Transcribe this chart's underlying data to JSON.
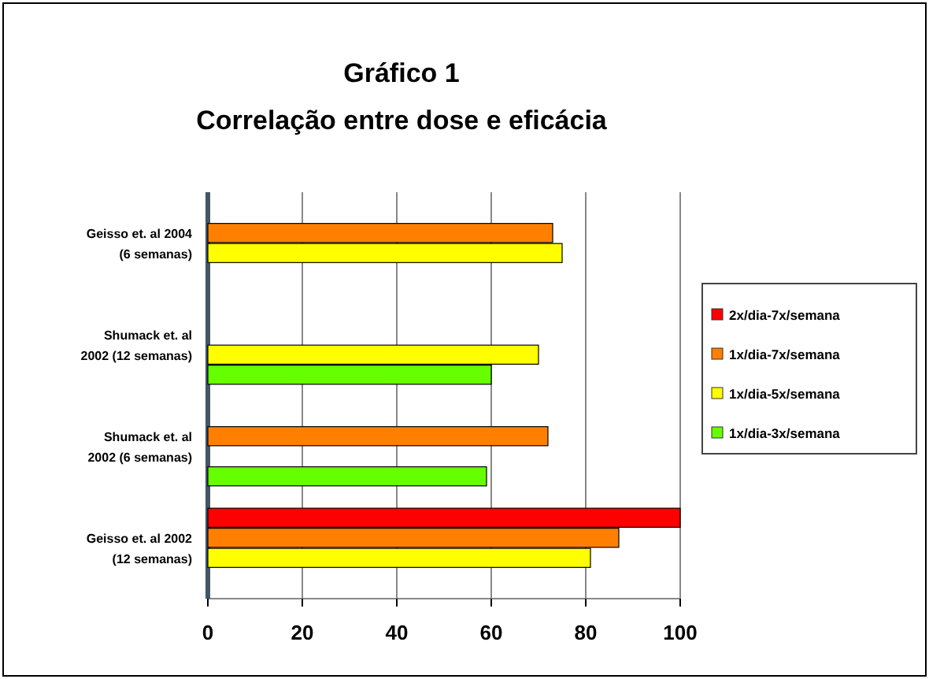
{
  "chart_data": {
    "type": "bar",
    "orientation": "horizontal",
    "title": "Gráfico 1",
    "subtitle": "Correlação entre dose e eficácia",
    "categories": [
      "Geisso et. al 2004 (6 semanas)",
      "Shumack et. al 2002 (12 semanas)",
      "Shumack et. al 2002 (6 semanas)",
      "Geisso et. al 2002 (12 semanas)"
    ],
    "series": [
      {
        "name": "2x/dia-7x/semana",
        "color": "#ff0000",
        "values": [
          null,
          null,
          null,
          100
        ]
      },
      {
        "name": "1x/dia-7x/semana",
        "color": "#ff8000",
        "values": [
          73,
          null,
          72,
          87
        ]
      },
      {
        "name": "1x/dia-5x/semana",
        "color": "#ffff00",
        "values": [
          75,
          70,
          null,
          81
        ]
      },
      {
        "name": "1x/dia-3x/semana",
        "color": "#66ff00",
        "values": [
          null,
          60,
          59,
          null
        ]
      }
    ],
    "xlim": [
      0,
      100
    ],
    "xticks": [
      0,
      20,
      40,
      60,
      80,
      100
    ],
    "grid": "x",
    "legend": "right"
  }
}
